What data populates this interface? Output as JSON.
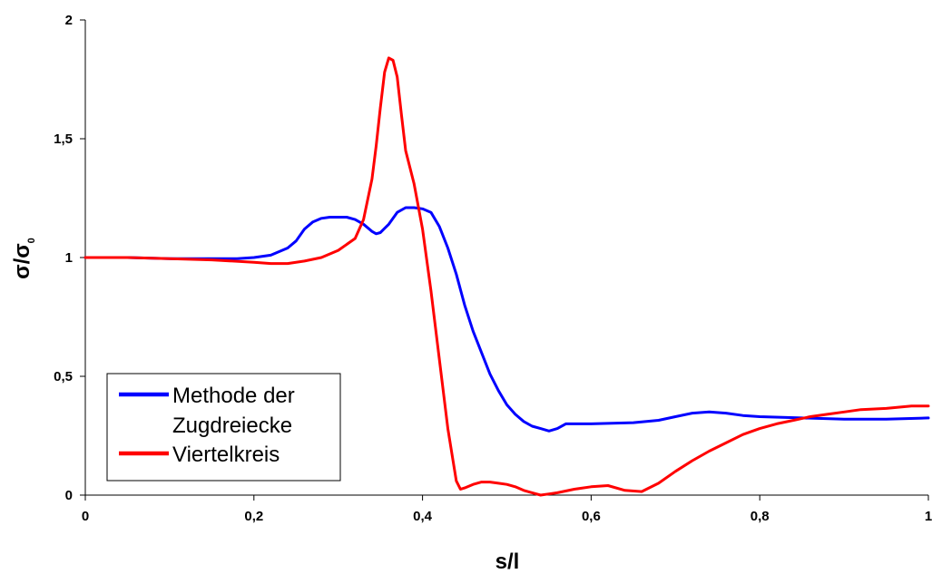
{
  "chart_data": {
    "type": "line",
    "xlabel": "s/l",
    "ylabel": "σ/σ",
    "ylabel_subscript": "0",
    "xlim": [
      0,
      1
    ],
    "ylim": [
      0,
      2
    ],
    "x_ticks": [
      0,
      0.2,
      0.4,
      0.6,
      0.8,
      1
    ],
    "x_tick_labels": [
      "0",
      "0,2",
      "0,4",
      "0,6",
      "0,8",
      "1"
    ],
    "y_ticks": [
      0,
      0.5,
      1,
      1.5,
      2
    ],
    "y_tick_labels": [
      "0",
      "0,5",
      "1",
      "1,5",
      "2"
    ],
    "grid": false,
    "legend_position": "bottom-left",
    "series": [
      {
        "name": "Methode der Zugdreiecke",
        "legend_lines": [
          "Methode der",
          "Zugdreiecke"
        ],
        "color": "#0000ff",
        "points": [
          [
            0,
            1.0
          ],
          [
            0.05,
            1.0
          ],
          [
            0.1,
            0.995
          ],
          [
            0.15,
            0.995
          ],
          [
            0.18,
            0.995
          ],
          [
            0.2,
            1.0
          ],
          [
            0.22,
            1.01
          ],
          [
            0.24,
            1.04
          ],
          [
            0.25,
            1.07
          ],
          [
            0.26,
            1.12
          ],
          [
            0.27,
            1.15
          ],
          [
            0.28,
            1.165
          ],
          [
            0.29,
            1.17
          ],
          [
            0.3,
            1.17
          ],
          [
            0.31,
            1.17
          ],
          [
            0.32,
            1.16
          ],
          [
            0.33,
            1.14
          ],
          [
            0.34,
            1.11
          ],
          [
            0.345,
            1.1
          ],
          [
            0.35,
            1.105
          ],
          [
            0.36,
            1.14
          ],
          [
            0.37,
            1.19
          ],
          [
            0.38,
            1.21
          ],
          [
            0.39,
            1.21
          ],
          [
            0.4,
            1.205
          ],
          [
            0.41,
            1.19
          ],
          [
            0.42,
            1.13
          ],
          [
            0.43,
            1.04
          ],
          [
            0.44,
            0.93
          ],
          [
            0.45,
            0.8
          ],
          [
            0.46,
            0.69
          ],
          [
            0.47,
            0.6
          ],
          [
            0.48,
            0.51
          ],
          [
            0.49,
            0.44
          ],
          [
            0.5,
            0.38
          ],
          [
            0.51,
            0.34
          ],
          [
            0.52,
            0.31
          ],
          [
            0.53,
            0.29
          ],
          [
            0.54,
            0.28
          ],
          [
            0.55,
            0.27
          ],
          [
            0.56,
            0.28
          ],
          [
            0.57,
            0.3
          ],
          [
            0.6,
            0.3
          ],
          [
            0.65,
            0.305
          ],
          [
            0.68,
            0.315
          ],
          [
            0.7,
            0.33
          ],
          [
            0.72,
            0.345
          ],
          [
            0.74,
            0.35
          ],
          [
            0.76,
            0.345
          ],
          [
            0.78,
            0.335
          ],
          [
            0.8,
            0.33
          ],
          [
            0.85,
            0.325
          ],
          [
            0.9,
            0.32
          ],
          [
            0.95,
            0.32
          ],
          [
            1.0,
            0.325
          ]
        ]
      },
      {
        "name": "Viertelkreis",
        "legend_lines": [
          "Viertelkreis"
        ],
        "color": "#ff0000",
        "points": [
          [
            0,
            1.0
          ],
          [
            0.05,
            1.0
          ],
          [
            0.1,
            0.995
          ],
          [
            0.15,
            0.99
          ],
          [
            0.2,
            0.98
          ],
          [
            0.22,
            0.975
          ],
          [
            0.24,
            0.975
          ],
          [
            0.26,
            0.985
          ],
          [
            0.28,
            1.0
          ],
          [
            0.3,
            1.03
          ],
          [
            0.32,
            1.08
          ],
          [
            0.33,
            1.16
          ],
          [
            0.34,
            1.33
          ],
          [
            0.345,
            1.47
          ],
          [
            0.35,
            1.63
          ],
          [
            0.355,
            1.78
          ],
          [
            0.36,
            1.84
          ],
          [
            0.365,
            1.83
          ],
          [
            0.37,
            1.76
          ],
          [
            0.375,
            1.6
          ],
          [
            0.38,
            1.45
          ],
          [
            0.39,
            1.31
          ],
          [
            0.4,
            1.12
          ],
          [
            0.41,
            0.86
          ],
          [
            0.42,
            0.57
          ],
          [
            0.43,
            0.28
          ],
          [
            0.44,
            0.06
          ],
          [
            0.445,
            0.025
          ],
          [
            0.45,
            0.03
          ],
          [
            0.46,
            0.045
          ],
          [
            0.47,
            0.055
          ],
          [
            0.48,
            0.055
          ],
          [
            0.49,
            0.05
          ],
          [
            0.5,
            0.045
          ],
          [
            0.51,
            0.035
          ],
          [
            0.52,
            0.02
          ],
          [
            0.53,
            0.01
          ],
          [
            0.54,
            0.0
          ],
          [
            0.55,
            0.005
          ],
          [
            0.56,
            0.01
          ],
          [
            0.58,
            0.025
          ],
          [
            0.6,
            0.035
          ],
          [
            0.62,
            0.04
          ],
          [
            0.64,
            0.02
          ],
          [
            0.66,
            0.015
          ],
          [
            0.68,
            0.05
          ],
          [
            0.7,
            0.1
          ],
          [
            0.72,
            0.145
          ],
          [
            0.74,
            0.185
          ],
          [
            0.76,
            0.22
          ],
          [
            0.78,
            0.255
          ],
          [
            0.8,
            0.28
          ],
          [
            0.82,
            0.3
          ],
          [
            0.84,
            0.315
          ],
          [
            0.86,
            0.33
          ],
          [
            0.88,
            0.34
          ],
          [
            0.9,
            0.35
          ],
          [
            0.92,
            0.36
          ],
          [
            0.95,
            0.365
          ],
          [
            0.98,
            0.375
          ],
          [
            1.0,
            0.375
          ]
        ]
      }
    ]
  }
}
